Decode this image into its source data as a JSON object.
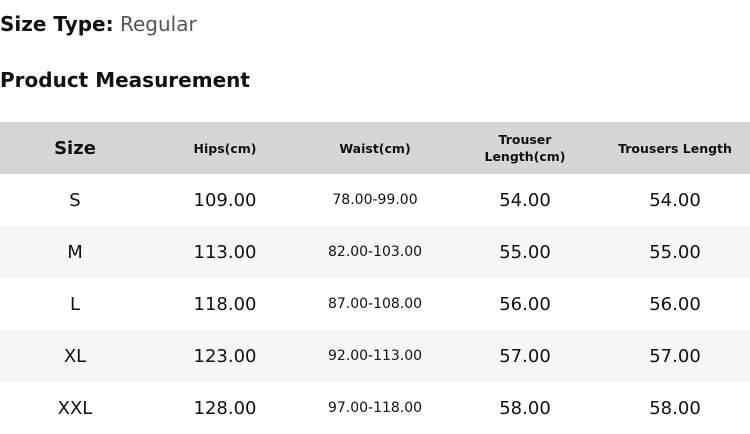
{
  "size_type": {
    "label": "Size Type:",
    "value": "Regular"
  },
  "section_title": "Product Measurement",
  "table": {
    "headers": [
      "Size",
      "Hips(cm)",
      "Waist(cm)",
      "Trouser Length(cm)",
      "Trousers Length"
    ],
    "rows": [
      [
        "S",
        "109.00",
        "78.00-99.00",
        "54.00",
        "54.00"
      ],
      [
        "M",
        "113.00",
        "82.00-103.00",
        "55.00",
        "55.00"
      ],
      [
        "L",
        "118.00",
        "87.00-108.00",
        "56.00",
        "56.00"
      ],
      [
        "XL",
        "123.00",
        "92.00-113.00",
        "57.00",
        "57.00"
      ],
      [
        "XXL",
        "128.00",
        "97.00-118.00",
        "58.00",
        "58.00"
      ]
    ]
  },
  "colors": {
    "header_bg": "#d6d6d6",
    "alt_row_bg": "#f7f7f7"
  }
}
